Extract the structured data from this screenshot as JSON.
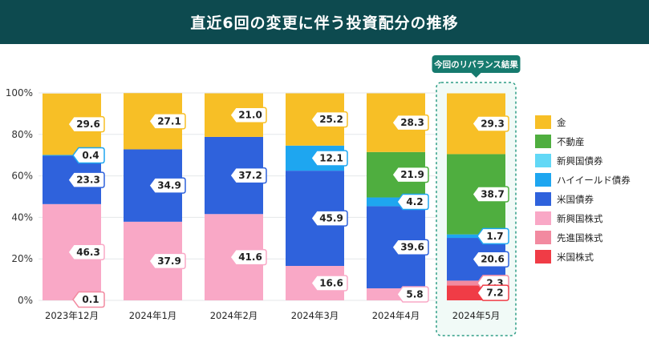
{
  "title": "直近6回の変更に伴う投資配分の推移",
  "highlight_label": "今回のリバランス結果",
  "chart_data": {
    "type": "bar",
    "stacked": true,
    "title": "直近6回の変更に伴う投資配分の推移",
    "categories": [
      "2023年12月",
      "2024年1月",
      "2024年2月",
      "2024年3月",
      "2024年4月",
      "2024年5月"
    ],
    "y_ticks": [
      "0%",
      "20%",
      "40%",
      "60%",
      "80%",
      "100%"
    ],
    "ylim": [
      0,
      100
    ],
    "grid": true,
    "legend_position": "right",
    "series": [
      {
        "name": "米国株式",
        "color": "#f03c46",
        "values": [
          0.0,
          0.0,
          0.0,
          0.0,
          0.0,
          7.2
        ]
      },
      {
        "name": "先進国株式",
        "color": "#f28aa0",
        "values": [
          0.1,
          0.0,
          0.0,
          0.0,
          0.0,
          2.3
        ]
      },
      {
        "name": "新興国株式",
        "color": "#f9a8c6",
        "values": [
          46.3,
          37.9,
          41.6,
          16.6,
          5.8,
          0.0
        ]
      },
      {
        "name": "米国債券",
        "color": "#2f62dc",
        "values": [
          23.3,
          34.9,
          37.2,
          45.9,
          39.6,
          20.6
        ]
      },
      {
        "name": "ハイイールド債券",
        "color": "#1ea6f0",
        "values": [
          0.4,
          0.0,
          0.0,
          12.1,
          4.2,
          1.7
        ]
      },
      {
        "name": "新興国債券",
        "color": "#62d8f6",
        "values": [
          0.0,
          0.0,
          0.0,
          0.0,
          0.0,
          0.0
        ]
      },
      {
        "name": "不動産",
        "color": "#4fae3f",
        "values": [
          0.0,
          0.0,
          0.0,
          0.0,
          21.9,
          38.7
        ]
      },
      {
        "name": "金",
        "color": "#f7bf26",
        "values": [
          29.6,
          27.1,
          21.0,
          25.2,
          28.3,
          29.3
        ]
      }
    ],
    "labels": [
      [
        {
          "series": "金",
          "text": "29.6"
        },
        {
          "series": "ハイイールド債券",
          "text": "0.4"
        },
        {
          "series": "米国債券",
          "text": "23.3"
        },
        {
          "series": "新興国株式",
          "text": "46.3"
        },
        {
          "series": "先進国株式",
          "text": "0.1"
        }
      ],
      [
        {
          "series": "金",
          "text": "27.1"
        },
        {
          "series": "米国債券",
          "text": "34.9"
        },
        {
          "series": "新興国株式",
          "text": "37.9"
        }
      ],
      [
        {
          "series": "金",
          "text": "21.0"
        },
        {
          "series": "米国債券",
          "text": "37.2"
        },
        {
          "series": "新興国株式",
          "text": "41.6"
        }
      ],
      [
        {
          "series": "金",
          "text": "25.2"
        },
        {
          "series": "ハイイールド債券",
          "text": "12.1"
        },
        {
          "series": "米国債券",
          "text": "45.9"
        },
        {
          "series": "新興国株式",
          "text": "16.6"
        }
      ],
      [
        {
          "series": "金",
          "text": "28.3"
        },
        {
          "series": "不動産",
          "text": "21.9"
        },
        {
          "series": "ハイイールド債券",
          "text": "4.2"
        },
        {
          "series": "米国債券",
          "text": "39.6"
        },
        {
          "series": "新興国株式",
          "text": "5.8"
        }
      ],
      [
        {
          "series": "金",
          "text": "29.3"
        },
        {
          "series": "不動産",
          "text": "38.7"
        },
        {
          "series": "ハイイールド債券",
          "text": "1.7"
        },
        {
          "series": "米国債券",
          "text": "20.6"
        },
        {
          "series": "先進国株式",
          "text": "2.3"
        },
        {
          "series": "米国株式",
          "text": "7.2"
        }
      ]
    ],
    "legend": [
      "金",
      "不動産",
      "新興国債券",
      "ハイイールド債券",
      "米国債券",
      "新興国株式",
      "先進国株式",
      "米国株式"
    ]
  }
}
